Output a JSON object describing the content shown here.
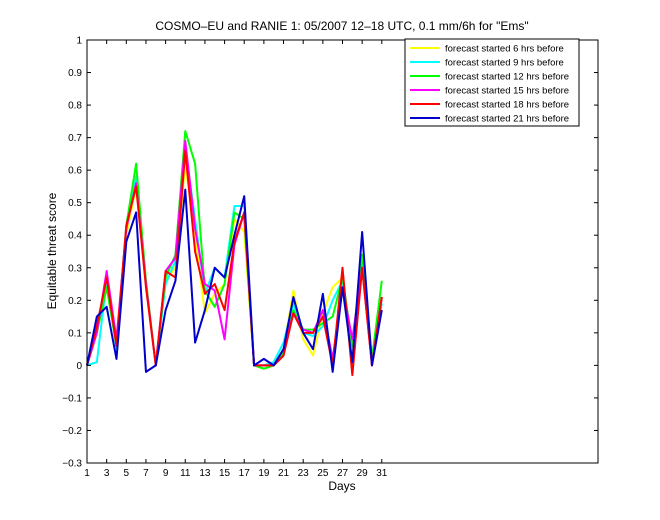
{
  "chart_data": {
    "type": "line",
    "title": "COSMO–EU and RANIE 1: 05/2007 12–18 UTC, 0.1 mm/6h for \"Ems\"",
    "xlabel": "Days",
    "ylabel": "Equitable threat score",
    "xlim": [
      1,
      53
    ],
    "ylim": [
      -0.3,
      1
    ],
    "xticks": [
      1,
      3,
      5,
      7,
      9,
      11,
      13,
      15,
      17,
      19,
      21,
      23,
      25,
      27,
      29,
      31
    ],
    "yticks": [
      -0.3,
      -0.2,
      -0.1,
      0,
      0.1,
      0.2,
      0.3,
      0.4,
      0.5,
      0.6,
      0.7,
      0.8,
      0.9,
      1
    ],
    "ytick_labels": [
      "−0.3",
      "−0.2",
      "−0.1",
      "0",
      "0.1",
      "0.2",
      "0.3",
      "0.4",
      "0.5",
      "0.6",
      "0.7",
      "0.8",
      "0.9",
      "1"
    ],
    "grid": false,
    "legend_position": "top-right",
    "x": [
      1,
      2,
      3,
      4,
      5,
      6,
      7,
      8,
      9,
      10,
      11,
      12,
      13,
      14,
      15,
      16,
      17,
      18,
      19,
      20,
      21,
      22,
      23,
      24,
      25,
      26,
      27,
      28,
      29,
      30,
      31
    ],
    "series": [
      {
        "name": "forecast started 6 hrs before",
        "color": "#ffff00",
        "values": [
          0.0,
          0.1,
          0.24,
          0.07,
          0.4,
          0.55,
          0.26,
          0.0,
          0.26,
          0.3,
          0.62,
          0.4,
          0.16,
          0.22,
          0.25,
          0.45,
          0.41,
          0.0,
          -0.01,
          0.0,
          0.05,
          0.23,
          0.08,
          0.03,
          0.16,
          0.24,
          0.27,
          0.05,
          0.3,
          0.0,
          0.21
        ]
      },
      {
        "name": "forecast started 9 hrs before",
        "color": "#00ffff",
        "values": [
          0.0,
          0.01,
          0.26,
          0.05,
          0.42,
          0.58,
          0.25,
          0.0,
          0.25,
          0.32,
          0.67,
          0.45,
          0.22,
          0.3,
          0.27,
          0.49,
          0.49,
          0.0,
          0.0,
          0.01,
          0.07,
          0.19,
          0.1,
          0.09,
          0.12,
          0.2,
          0.26,
          0.06,
          0.33,
          0.02,
          0.19
        ]
      },
      {
        "name": "forecast started 12 hrs before",
        "color": "#00ff00",
        "values": [
          0.0,
          0.1,
          0.24,
          0.06,
          0.43,
          0.62,
          0.26,
          0.0,
          0.27,
          0.34,
          0.72,
          0.62,
          0.23,
          0.18,
          0.25,
          0.47,
          0.45,
          0.0,
          -0.01,
          0.0,
          0.04,
          0.17,
          0.11,
          0.11,
          0.13,
          0.15,
          0.27,
          0.06,
          0.34,
          0.02,
          0.26
        ]
      },
      {
        "name": "forecast started 15 hrs before",
        "color": "#ff00ff",
        "values": [
          0.0,
          0.1,
          0.29,
          0.08,
          0.42,
          0.56,
          0.25,
          0.0,
          0.29,
          0.33,
          0.69,
          0.42,
          0.25,
          0.23,
          0.08,
          0.37,
          0.47,
          0.0,
          0.0,
          0.0,
          0.05,
          0.16,
          0.11,
          0.1,
          0.17,
          0.02,
          0.24,
          0.08,
          0.3,
          0.0,
          0.21
        ]
      },
      {
        "name": "forecast started 18 hrs before",
        "color": "#ff0000",
        "values": [
          0.0,
          0.12,
          0.27,
          0.06,
          0.43,
          0.55,
          0.24,
          0.0,
          0.29,
          0.27,
          0.66,
          0.35,
          0.22,
          0.25,
          0.17,
          0.38,
          0.47,
          0.0,
          0.0,
          0.0,
          0.03,
          0.16,
          0.1,
          0.1,
          0.15,
          0.0,
          0.3,
          -0.03,
          0.3,
          0.0,
          0.21
        ]
      },
      {
        "name": "forecast started 21 hrs before",
        "color": "#0000cc",
        "values": [
          0.0,
          0.15,
          0.18,
          0.02,
          0.38,
          0.47,
          -0.02,
          0.0,
          0.17,
          0.26,
          0.54,
          0.07,
          0.17,
          0.3,
          0.27,
          0.4,
          0.52,
          0.0,
          0.02,
          0.0,
          0.05,
          0.21,
          0.1,
          0.05,
          0.22,
          -0.02,
          0.24,
          0.01,
          0.41,
          0.0,
          0.17
        ]
      }
    ]
  }
}
